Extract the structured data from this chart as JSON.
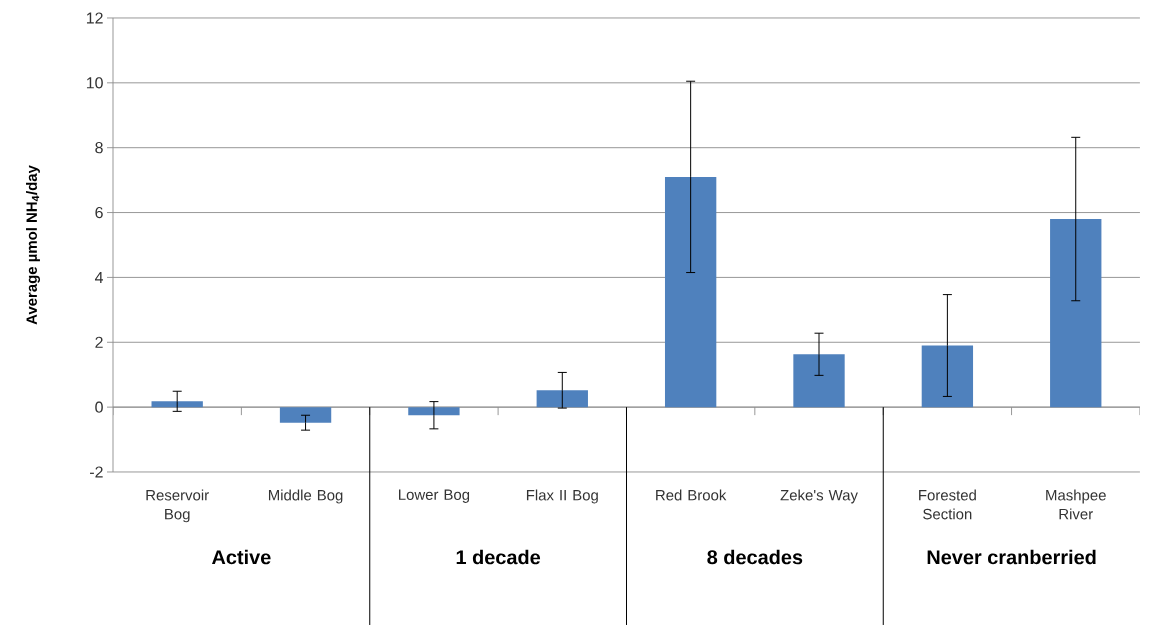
{
  "chart_data": {
    "type": "bar",
    "ylabel": "Average µmol NH$_{4}$/day",
    "categories": [
      "Reservoir Bog",
      "Middle Bog",
      "Lower Bog",
      "Flax II Bog",
      "Red Brook",
      "Zeke's Way",
      "Forested Section",
      "Mashpee River"
    ],
    "values": [
      0.18,
      -0.48,
      -0.25,
      0.52,
      7.1,
      1.63,
      1.9,
      5.8
    ],
    "errors": [
      0.31,
      0.23,
      0.42,
      0.55,
      2.95,
      0.65,
      1.57,
      2.52
    ],
    "color": "#4f81bd",
    "ylim": [
      -2,
      12
    ],
    "yticks": [
      -2,
      0,
      2,
      4,
      6,
      8,
      10,
      12
    ],
    "grid": "y",
    "annotations": [
      "Active",
      "1 decade",
      "8 decades",
      "Never cranberried"
    ]
  }
}
